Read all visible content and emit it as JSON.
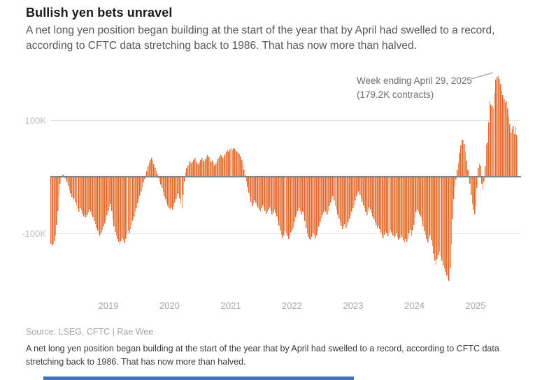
{
  "header": {
    "title": "Bullish yen bets unravel",
    "subtitle": "A net long yen position began building at the start of the year that by April had swelled to a record, according to CFTC data stretching back to 1986. That has now more than halved."
  },
  "annotation": {
    "line1": "Week ending April 29, 2025",
    "line2": "(179.2K contracts)"
  },
  "footer": {
    "source": "Source: LSEG, CFTC | Rae Wee",
    "note": "A net long yen position began building at the start of the year that by April had swelled to a record, according to CFTC data stretching back to 1986. That has now more than halved."
  },
  "colors": {
    "bar_stroke": "#de6930",
    "bar_fill": "#f5b28c",
    "zero_line": "#848484",
    "gridline": "#e6e6e6",
    "scroll_thumb": "#4173b6",
    "annotation_leader": "#b0b0b0"
  },
  "chart_data": {
    "type": "bar",
    "title": "Bullish yen bets unravel",
    "frequency": "weekly",
    "unit": "thousands of contracts (net long yen position, CFTC)",
    "grid": "horizontal",
    "ylim": [
      -190,
      190
    ],
    "y_ticks": [
      {
        "label": "100K",
        "value": 100
      },
      {
        "label": "-100K",
        "value": -100
      }
    ],
    "x_tick_labels": [
      "2019",
      "2020",
      "2021",
      "2022",
      "2023",
      "2024",
      "2025"
    ],
    "annotation": {
      "text": "Week ending April 29, 2025 (179.2K contracts)",
      "value_k": 179.2
    },
    "series": [
      {
        "year": 2018,
        "values": [
          -118,
          -122,
          -120,
          -113,
          -104,
          -85,
          -60,
          -35,
          -12,
          -3,
          2,
          4,
          -2,
          -5,
          -10,
          -16,
          -24,
          -30,
          -36,
          -42,
          -38,
          -44,
          -50,
          -57,
          -61,
          -55,
          -59,
          -65,
          -70,
          -66,
          -72,
          -68,
          -63,
          -58,
          -61,
          -66,
          -72,
          -78,
          -84,
          -90,
          -95,
          -100,
          -103,
          -98,
          -94,
          -88,
          -82,
          -76,
          -68,
          -60,
          -53,
          -48
        ]
      },
      {
        "year": 2019,
        "values": [
          -60,
          -75,
          -88,
          -97,
          -104,
          -110,
          -115,
          -118,
          -113,
          -108,
          -112,
          -117,
          -110,
          -102,
          -95,
          -100,
          -92,
          -85,
          -78,
          -70,
          -62,
          -55,
          -47,
          -40,
          -33,
          -26,
          -18,
          -10,
          -4,
          3,
          10,
          18,
          25,
          30,
          33,
          28,
          22,
          16,
          10,
          5,
          -2,
          -8,
          -14,
          -20,
          -27,
          -34,
          -40,
          -46,
          -50,
          -55,
          -58,
          -54
        ]
      },
      {
        "year": 2020,
        "values": [
          -58,
          -52,
          -46,
          -40,
          -35,
          -30,
          -38,
          -48,
          -56,
          -32,
          -8,
          8,
          15,
          20,
          24,
          27,
          23,
          26,
          30,
          33,
          28,
          25,
          22,
          26,
          30,
          33,
          30,
          27,
          31,
          35,
          38,
          34,
          30,
          26,
          29,
          23,
          20,
          24,
          28,
          32,
          36,
          40,
          37,
          33,
          36,
          40,
          44,
          47,
          45,
          48,
          50,
          47
        ]
      },
      {
        "year": 2021,
        "values": [
          50,
          49,
          46,
          44,
          42,
          40,
          36,
          30,
          22,
          12,
          2,
          -8,
          -18,
          -28,
          -36,
          -44,
          -52,
          -48,
          -42,
          -46,
          -50,
          -54,
          -58,
          -62,
          -56,
          -50,
          -54,
          -60,
          -65,
          -62,
          -58,
          -54,
          -60,
          -66,
          -63,
          -58,
          -64,
          -70,
          -78,
          -86,
          -95,
          -102,
          -107,
          -103,
          -96,
          -100,
          -105,
          -110,
          -104,
          -98,
          -94,
          -90
        ]
      },
      {
        "year": 2022,
        "values": [
          -80,
          -72,
          -66,
          -60,
          -55,
          -60,
          -66,
          -62,
          -68,
          -78,
          -90,
          -100,
          -106,
          -110,
          -112,
          -106,
          -100,
          -102,
          -108,
          -104,
          -96,
          -88,
          -80,
          -74,
          -68,
          -63,
          -58,
          -62,
          -66,
          -60,
          -52,
          -45,
          -40,
          -35,
          -42,
          -50,
          -58,
          -66,
          -74,
          -80,
          -86,
          -92,
          -88,
          -84,
          -90,
          -86,
          -80,
          -74,
          -68,
          -62,
          -56,
          -50
        ]
      },
      {
        "year": 2023,
        "values": [
          -42,
          -35,
          -30,
          -26,
          -32,
          -38,
          -44,
          -50,
          -56,
          -62,
          -68,
          -60,
          -54,
          -58,
          -64,
          -70,
          -75,
          -80,
          -85,
          -90,
          -86,
          -92,
          -98,
          -104,
          -108,
          -102,
          -96,
          -100,
          -105,
          -98,
          -94,
          -99,
          -104,
          -109,
          -105,
          -100,
          -106,
          -111,
          -108,
          -102,
          -107,
          -112,
          -116,
          -110,
          -114,
          -108,
          -100,
          -94,
          -105,
          -95,
          -85,
          -72
        ]
      },
      {
        "year": 2024,
        "values": [
          -62,
          -58,
          -62,
          -66,
          -70,
          -78,
          -88,
          -96,
          -102,
          -110,
          -116,
          -110,
          -104,
          -112,
          -122,
          -135,
          -148,
          -155,
          -146,
          -138,
          -132,
          -140,
          -148,
          -156,
          -162,
          -168,
          -174,
          -180,
          -184,
          -162,
          -120,
          -75,
          -40,
          -18,
          -5,
          12,
          24,
          42,
          55,
          64,
          66,
          58,
          44,
          28,
          12,
          10,
          -12,
          -32,
          -48,
          -58,
          -66,
          -52
        ]
      },
      {
        "year": 2025,
        "values": [
          -20,
          16,
          24,
          20,
          -12,
          -22,
          -8,
          18,
          57,
          61,
          96,
          133,
          127,
          125,
          121,
          147,
          172,
          177,
          179.2,
          173,
          164,
          152,
          144,
          137,
          131,
          133,
          121,
          106,
          93,
          78,
          84,
          90,
          75,
          88,
          74
        ]
      }
    ]
  }
}
